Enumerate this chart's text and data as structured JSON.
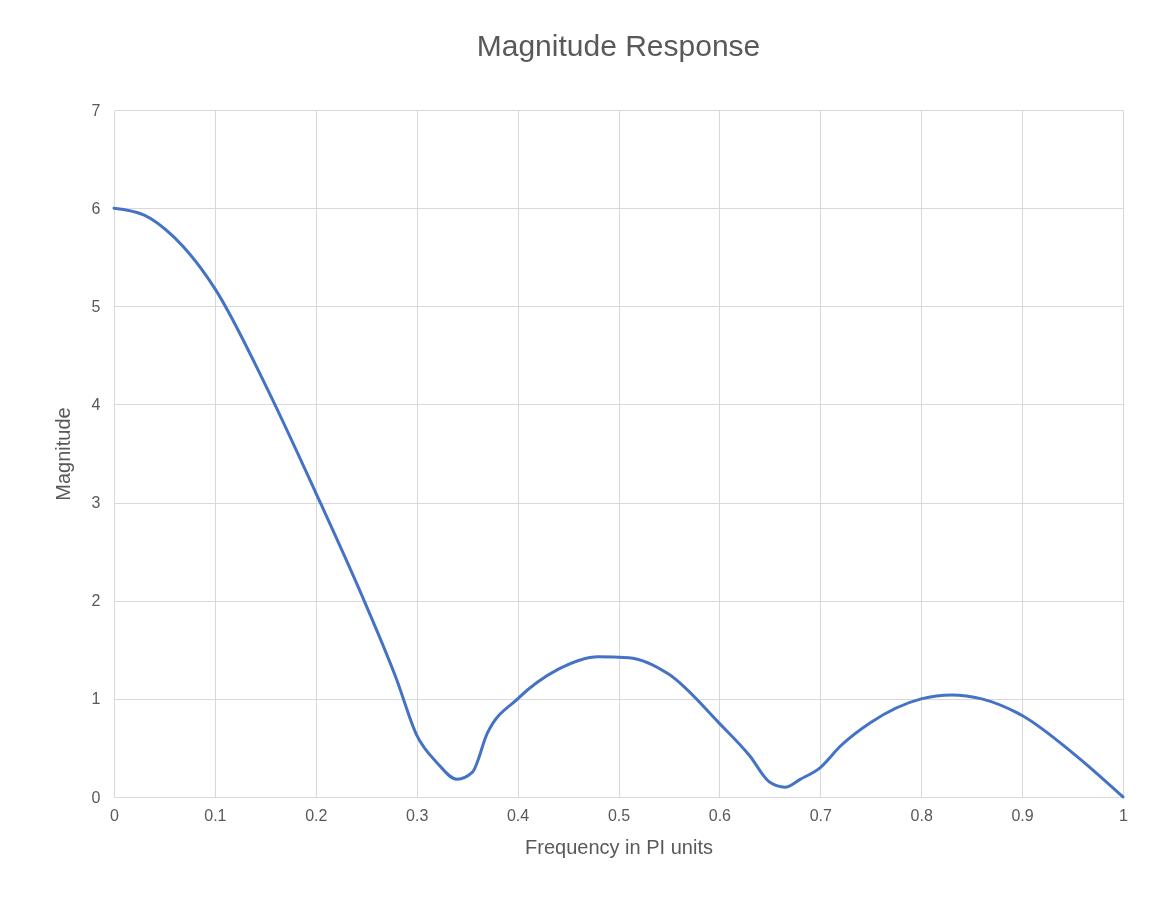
{
  "chart_data": {
    "type": "line",
    "title": "Magnitude Response",
    "xlabel": "Frequency in PI units",
    "ylabel": "Magnitude",
    "x": [
      0,
      0.03,
      0.06,
      0.1,
      0.15,
      0.2,
      0.25,
      0.28,
      0.3,
      0.32,
      0.34,
      0.355,
      0.37,
      0.4,
      0.44,
      0.48,
      0.51,
      0.55,
      0.6,
      0.63,
      0.65,
      0.665,
      0.68,
      0.7,
      0.72,
      0.75,
      0.8,
      0.83,
      0.86,
      0.9,
      0.95,
      1
    ],
    "series": [
      {
        "color": "#4472c4",
        "values": [
          6,
          5.93,
          5.7,
          5.18,
          4.2,
          3.1,
          1.95,
          1.2,
          0.63,
          0.35,
          0.18,
          0.25,
          0.65,
          1.0,
          1.3,
          1.43,
          1.42,
          1.25,
          0.75,
          0.42,
          0.15,
          0.1,
          0.18,
          0.3,
          0.52,
          0.76,
          1.0,
          1.04,
          1.0,
          0.83,
          0.45,
          0
        ]
      }
    ],
    "xlim": [
      0,
      1
    ],
    "xticks": [
      0,
      0.1,
      0.2,
      0.3,
      0.4,
      0.5,
      0.6,
      0.7,
      0.8,
      0.9,
      1
    ],
    "ylim": [
      0,
      7
    ],
    "yticks": [
      0,
      1,
      2,
      3,
      4,
      5,
      6,
      7
    ],
    "grid": true,
    "marker": "none",
    "line_style": "solid"
  }
}
